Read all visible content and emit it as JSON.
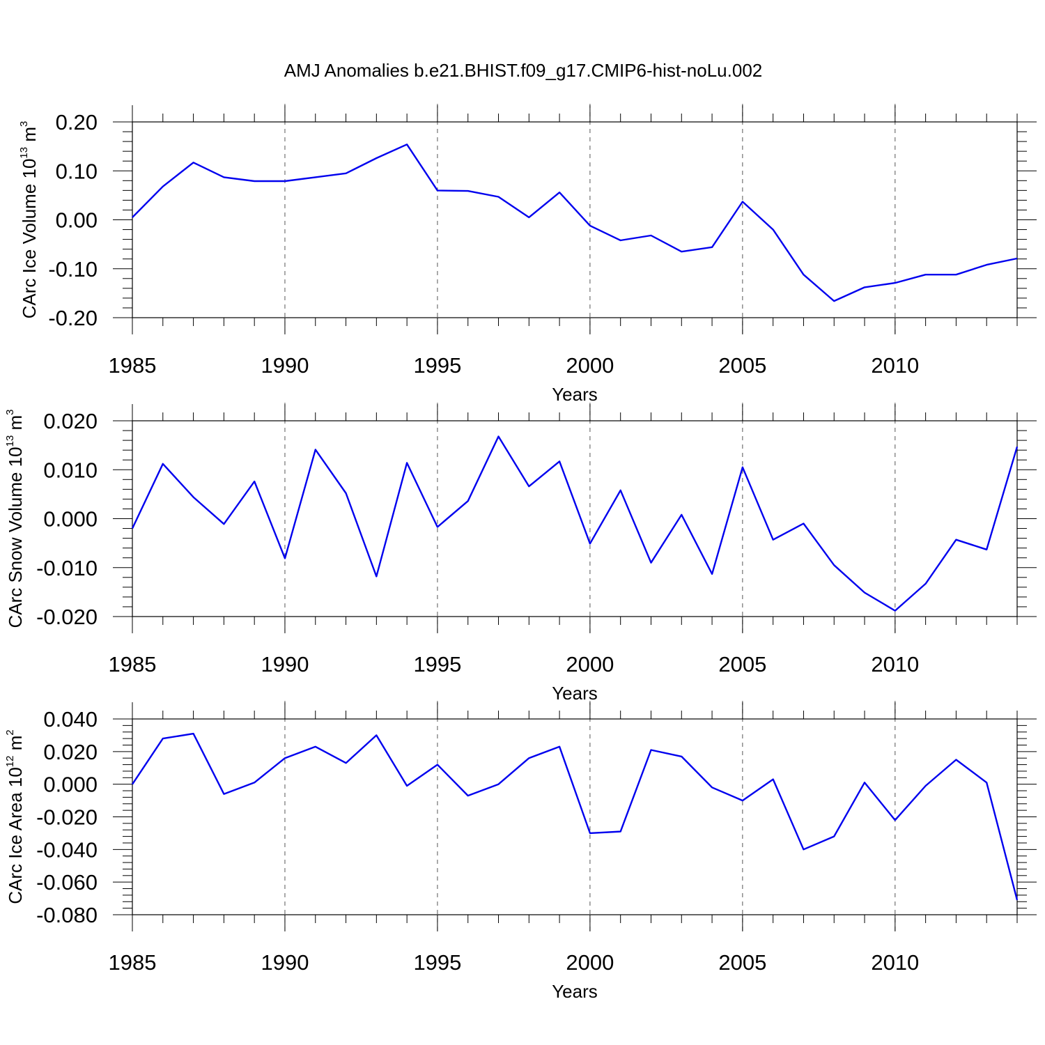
{
  "title": "AMJ Anomalies b.e21.BHIST.f09_g17.CMIP6-hist-noLu.002",
  "colors": {
    "line": "#0000ee",
    "axis": "#000000"
  },
  "chart_data": [
    {
      "type": "line",
      "ylabel_main": "CArc Ice Volume 10",
      "ylabel_exp": "13",
      "ylabel_unit": "m",
      "ylabel_unit_exp": "3",
      "xlabel": "Years",
      "xlim": [
        1985,
        2014
      ],
      "ylim": [
        -0.2,
        0.2
      ],
      "yticks": [
        0.2,
        0.1,
        0.0,
        -0.1,
        -0.2
      ],
      "ytick_labels": [
        "0.20",
        "0.10",
        "0.00",
        "-0.10",
        "-0.20"
      ],
      "xticks": [
        1985,
        1990,
        1995,
        2000,
        2005,
        2010
      ],
      "xtick_labels": [
        "1985",
        "1990",
        "1995",
        "2000",
        "2005",
        "2010"
      ],
      "grid_x": [
        1990,
        1995,
        2000,
        2005,
        2010
      ],
      "x": [
        1985,
        1986,
        1987,
        1988,
        1989,
        1990,
        1991,
        1992,
        1993,
        1994,
        1995,
        1996,
        1997,
        1998,
        1999,
        2000,
        2001,
        2002,
        2003,
        2004,
        2005,
        2006,
        2007,
        2008,
        2009,
        2010,
        2011,
        2012,
        2013,
        2014
      ],
      "y": [
        0.005,
        0.068,
        0.117,
        0.087,
        0.079,
        0.079,
        0.087,
        0.095,
        0.126,
        0.154,
        0.06,
        0.059,
        0.047,
        0.005,
        0.056,
        -0.012,
        -0.042,
        -0.032,
        -0.065,
        -0.056,
        0.037,
        -0.02,
        -0.112,
        -0.166,
        -0.138,
        -0.129,
        -0.112,
        -0.112,
        -0.092,
        -0.079
      ]
    },
    {
      "type": "line",
      "ylabel_main": "CArc Snow Volume 10",
      "ylabel_exp": "13",
      "ylabel_unit": "m",
      "ylabel_unit_exp": "3",
      "xlabel": "Years",
      "xlim": [
        1985,
        2014
      ],
      "ylim": [
        -0.02,
        0.02
      ],
      "yticks": [
        0.02,
        0.01,
        0.0,
        -0.01,
        -0.02
      ],
      "ytick_labels": [
        "0.020",
        "0.010",
        "0.000",
        "-0.010",
        "-0.020"
      ],
      "xticks": [
        1985,
        1990,
        1995,
        2000,
        2005,
        2010
      ],
      "xtick_labels": [
        "1985",
        "1990",
        "1995",
        "2000",
        "2005",
        "2010"
      ],
      "grid_x": [
        1990,
        1995,
        2000,
        2005,
        2010
      ],
      "x": [
        1985,
        1986,
        1987,
        1988,
        1989,
        1990,
        1991,
        1992,
        1993,
        1994,
        1995,
        1996,
        1997,
        1998,
        1999,
        2000,
        2001,
        2002,
        2003,
        2004,
        2005,
        2006,
        2007,
        2008,
        2009,
        2010,
        2011,
        2012,
        2013,
        2014
      ],
      "y": [
        -0.002,
        0.0112,
        0.0044,
        -0.0011,
        0.0076,
        -0.0081,
        0.0141,
        0.0052,
        -0.0118,
        0.0114,
        -0.0017,
        0.0036,
        0.0168,
        0.0066,
        0.0117,
        -0.0051,
        0.0058,
        -0.009,
        0.0008,
        -0.0113,
        0.0105,
        -0.0043,
        -0.001,
        -0.0095,
        -0.0151,
        -0.0188,
        -0.0133,
        -0.0043,
        -0.0063,
        0.0147
      ]
    },
    {
      "type": "line",
      "ylabel_main": "CArc Ice Area 10",
      "ylabel_exp": "12",
      "ylabel_unit": "m",
      "ylabel_unit_exp": "2",
      "xlabel": "Years",
      "xlim": [
        1985,
        2014
      ],
      "ylim": [
        -0.08,
        0.04
      ],
      "yticks": [
        0.04,
        0.02,
        0.0,
        -0.02,
        -0.04,
        -0.06,
        -0.08
      ],
      "ytick_labels": [
        "0.040",
        "0.020",
        "0.000",
        "-0.020",
        "-0.040",
        "-0.060",
        "-0.080"
      ],
      "xticks": [
        1985,
        1990,
        1995,
        2000,
        2005,
        2010
      ],
      "xtick_labels": [
        "1985",
        "1990",
        "1995",
        "2000",
        "2005",
        "2010"
      ],
      "grid_x": [
        1990,
        1995,
        2000,
        2005,
        2010
      ],
      "x": [
        1985,
        1986,
        1987,
        1988,
        1989,
        1990,
        1991,
        1992,
        1993,
        1994,
        1995,
        1996,
        1997,
        1998,
        1999,
        2000,
        2001,
        2002,
        2003,
        2004,
        2005,
        2006,
        2007,
        2008,
        2009,
        2010,
        2011,
        2012,
        2013,
        2014
      ],
      "y": [
        0.0,
        0.028,
        0.031,
        -0.006,
        0.001,
        0.016,
        0.023,
        0.013,
        0.03,
        -0.001,
        0.012,
        -0.007,
        0.0,
        0.016,
        0.023,
        -0.03,
        -0.029,
        0.021,
        0.017,
        -0.002,
        -0.01,
        0.003,
        -0.04,
        -0.032,
        0.001,
        -0.022,
        -0.001,
        0.015,
        0.001,
        -0.071
      ]
    }
  ]
}
